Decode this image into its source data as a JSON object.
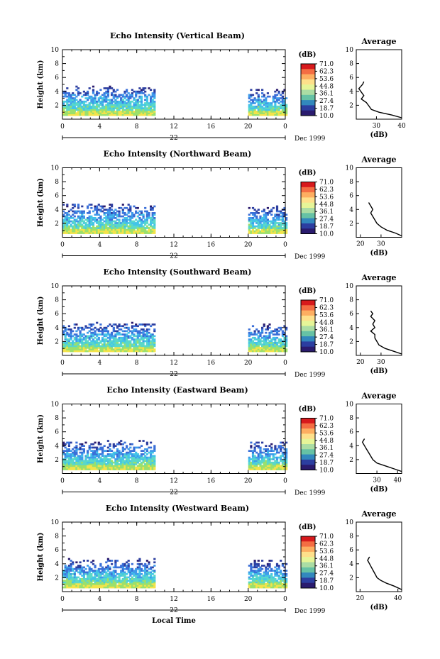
{
  "chart_data": [
    {
      "type": "heatmap",
      "title": "Echo Intensity (Vertical Beam)",
      "ylabel": "Height (km)",
      "ylim": [
        0,
        10
      ],
      "yticks": [
        "2",
        "4",
        "6",
        "8",
        "10"
      ],
      "xlim": [
        0,
        24
      ],
      "xticks": [
        "0",
        "4",
        "8",
        "12",
        "16",
        "20",
        "0"
      ],
      "date_label": "22",
      "month_label": "Dec 1999",
      "colorbar_unit": "(dB)",
      "colorbar_levels": [
        "71.0",
        "62.3",
        "53.6",
        "44.8",
        "36.1",
        "27.4",
        "18.7",
        "10.0"
      ],
      "data_segments": [
        {
          "x": [
            0,
            9.8
          ]
        },
        {
          "x": [
            20,
            24
          ]
        }
      ],
      "echo_top_km": [
        4.8,
        4.3
      ],
      "average_profile": {
        "title": "Average",
        "xlabel": "(dB)",
        "xlim": [
          22,
          40
        ],
        "xticks": [
          "30",
          "40"
        ],
        "ylim": [
          0,
          10
        ],
        "yticks": [
          "2",
          "4",
          "6",
          "8",
          "10"
        ],
        "points": [
          [
            40,
            0.2
          ],
          [
            36,
            0.6
          ],
          [
            31,
            1.0
          ],
          [
            28,
            1.4
          ],
          [
            27,
            1.9
          ],
          [
            26,
            2.4
          ],
          [
            24,
            2.9
          ],
          [
            25,
            3.4
          ],
          [
            24,
            3.9
          ],
          [
            23,
            4.4
          ],
          [
            24.5,
            5.0
          ],
          [
            25,
            5.4
          ]
        ]
      }
    },
    {
      "type": "heatmap",
      "title": "Echo Intensity (Northward Beam)",
      "ylabel": "Height (km)",
      "ylim": [
        0,
        10
      ],
      "yticks": [
        "2",
        "4",
        "6",
        "8",
        "10"
      ],
      "xlim": [
        0,
        24
      ],
      "xticks": [
        "0",
        "4",
        "8",
        "12",
        "16",
        "20",
        "0"
      ],
      "date_label": "22",
      "month_label": "Dec 1999",
      "colorbar_unit": "(dB)",
      "colorbar_levels": [
        "71.0",
        "62.3",
        "53.6",
        "44.8",
        "36.1",
        "27.4",
        "18.7",
        "10.0"
      ],
      "data_segments": [
        {
          "x": [
            0,
            9.8
          ]
        },
        {
          "x": [
            20,
            24
          ]
        }
      ],
      "echo_top_km": [
        4.8,
        4.4
      ],
      "average_profile": {
        "title": "Average",
        "xlabel": "(dB)",
        "xlim": [
          18,
          40
        ],
        "xticks": [
          "20",
          "30"
        ],
        "ylim": [
          0,
          10
        ],
        "yticks": [
          "2",
          "4",
          "6",
          "8",
          "10"
        ],
        "points": [
          [
            40,
            0.2
          ],
          [
            37,
            0.6
          ],
          [
            33,
            1.0
          ],
          [
            30,
            1.5
          ],
          [
            28,
            2.0
          ],
          [
            27,
            2.5
          ],
          [
            26,
            3.0
          ],
          [
            25,
            3.5
          ],
          [
            26,
            4.0
          ],
          [
            25,
            4.5
          ],
          [
            24,
            5.0
          ]
        ]
      }
    },
    {
      "type": "heatmap",
      "title": "Echo Intensity (Southward Beam)",
      "ylabel": "Height (km)",
      "ylim": [
        0,
        10
      ],
      "yticks": [
        "2",
        "4",
        "6",
        "8",
        "10"
      ],
      "xlim": [
        0,
        24
      ],
      "xticks": [
        "0",
        "4",
        "8",
        "12",
        "16",
        "20",
        "0"
      ],
      "date_label": "22",
      "month_label": "Dec 1999",
      "colorbar_unit": "(dB)",
      "colorbar_levels": [
        "71.0",
        "62.3",
        "53.6",
        "44.8",
        "36.1",
        "27.4",
        "18.7",
        "10.0"
      ],
      "data_segments": [
        {
          "x": [
            0,
            9.8
          ]
        },
        {
          "x": [
            20,
            24
          ]
        }
      ],
      "echo_top_km": [
        4.8,
        4.4
      ],
      "average_profile": {
        "title": "Average",
        "xlabel": "(dB)",
        "xlim": [
          18,
          40
        ],
        "xticks": [
          "20",
          "30"
        ],
        "ylim": [
          0,
          10
        ],
        "yticks": [
          "2",
          "4",
          "6",
          "8",
          "10"
        ],
        "points": [
          [
            40,
            0.2
          ],
          [
            36,
            0.6
          ],
          [
            32,
            1.0
          ],
          [
            29,
            1.5
          ],
          [
            28,
            2.0
          ],
          [
            27,
            2.5
          ],
          [
            27,
            3.0
          ],
          [
            25,
            3.5
          ],
          [
            27,
            4.0
          ],
          [
            26,
            4.5
          ],
          [
            27,
            5.0
          ],
          [
            25,
            5.6
          ],
          [
            26,
            6.0
          ],
          [
            25,
            6.4
          ]
        ]
      }
    },
    {
      "type": "heatmap",
      "title": "Echo Intensity (Eastward Beam)",
      "ylabel": "Height (km)",
      "ylim": [
        0,
        10
      ],
      "yticks": [
        "2",
        "4",
        "6",
        "8",
        "10"
      ],
      "xlim": [
        0,
        24
      ],
      "xticks": [
        "0",
        "4",
        "8",
        "12",
        "16",
        "20",
        "0"
      ],
      "date_label": "22",
      "month_label": "Dec 1999",
      "colorbar_unit": "(dB)",
      "colorbar_levels": [
        "71.0",
        "62.3",
        "53.6",
        "44.8",
        "36.1",
        "27.4",
        "18.7",
        "10.0"
      ],
      "data_segments": [
        {
          "x": [
            0,
            9.8
          ]
        },
        {
          "x": [
            20,
            24
          ]
        }
      ],
      "echo_top_km": [
        4.6,
        4.4
      ],
      "average_profile": {
        "title": "Average",
        "xlabel": "(dB)",
        "xlim": [
          20,
          42
        ],
        "xticks": [
          "30",
          "40"
        ],
        "ylim": [
          0,
          10
        ],
        "yticks": [
          "2",
          "4",
          "6",
          "8",
          "10"
        ],
        "points": [
          [
            42,
            0.3
          ],
          [
            38,
            0.7
          ],
          [
            34,
            1.1
          ],
          [
            30,
            1.5
          ],
          [
            28,
            2.0
          ],
          [
            27,
            2.5
          ],
          [
            26,
            3.0
          ],
          [
            25,
            3.5
          ],
          [
            24,
            4.0
          ],
          [
            23,
            4.5
          ],
          [
            24,
            5.0
          ]
        ]
      }
    },
    {
      "type": "heatmap",
      "title": "Echo Intensity (Westward Beam)",
      "ylabel": "Height (km)",
      "ylim": [
        0,
        10
      ],
      "yticks": [
        "2",
        "4",
        "6",
        "8",
        "10"
      ],
      "xlim": [
        0,
        24
      ],
      "xticks": [
        "0",
        "4",
        "8",
        "12",
        "16",
        "20",
        "0"
      ],
      "date_label": "22",
      "month_label": "Dec 1999",
      "xlabel": "Local Time",
      "colorbar_unit": "(dB)",
      "colorbar_levels": [
        "71.0",
        "62.3",
        "53.6",
        "44.8",
        "36.1",
        "27.4",
        "18.7",
        "10.0"
      ],
      "data_segments": [
        {
          "x": [
            0,
            9.8
          ]
        },
        {
          "x": [
            20,
            24
          ]
        }
      ],
      "echo_top_km": [
        4.7,
        4.4
      ],
      "average_profile": {
        "title": "Average",
        "xlabel": "(dB)",
        "xlim": [
          18,
          42
        ],
        "xticks": [
          "20",
          "40"
        ],
        "ylim": [
          0,
          10
        ],
        "yticks": [
          "2",
          "4",
          "6",
          "8",
          "10"
        ],
        "points": [
          [
            42,
            0.3
          ],
          [
            38,
            0.8
          ],
          [
            34,
            1.2
          ],
          [
            31,
            1.6
          ],
          [
            29,
            2.0
          ],
          [
            28,
            2.5
          ],
          [
            27,
            3.0
          ],
          [
            26,
            3.5
          ],
          [
            25,
            4.0
          ],
          [
            24,
            4.5
          ],
          [
            25,
            5.0
          ]
        ]
      }
    }
  ],
  "colorbar_colors": [
    "#d7191c",
    "#f46d43",
    "#fdae61",
    "#fee08b",
    "#e6f598",
    "#abdda4",
    "#66c2a5",
    "#3288bd",
    "#2c3ea0",
    "#2a1b6e"
  ]
}
